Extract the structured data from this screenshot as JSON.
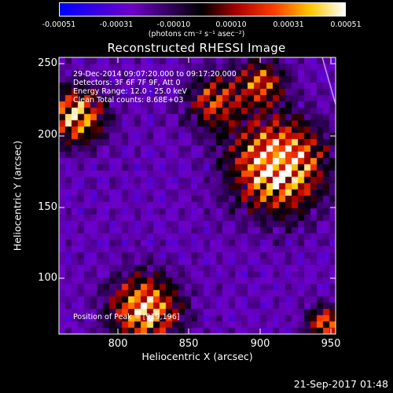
{
  "colorbar": {
    "ticks": [
      "-0.00051",
      "-0.00031",
      "-0.00010",
      "0.00010",
      "0.00031",
      "0.00051"
    ],
    "unit_text": "(photons cm⁻² s⁻¹ asec⁻²)"
  },
  "title": "Reconstructed RHESSI Image",
  "annotations": {
    "time": "29-Dec-2014 09:07:20.000 to 09:17:20.000",
    "detectors": "Detectors: 3F 6F 7F 9F, Att 0",
    "energy": "Energy Range: 12.0 - 25.0 keV",
    "clean": "Clean    Total counts: 8.68E+03",
    "peak": "Position of Peak = [919,196]"
  },
  "axes": {
    "xlabel": "Heliocentric X (arcsec)",
    "ylabel": "Heliocentric Y (arcsec)",
    "xticks": [
      "800",
      "850",
      "900",
      "950"
    ],
    "yticks": [
      "100",
      "150",
      "200",
      "250"
    ]
  },
  "footer": {
    "timestamp": "21-Sep-2017 01:48"
  },
  "colors": {
    "low": "#0000ff",
    "mid": "#000000",
    "high": "#ffffff"
  }
}
